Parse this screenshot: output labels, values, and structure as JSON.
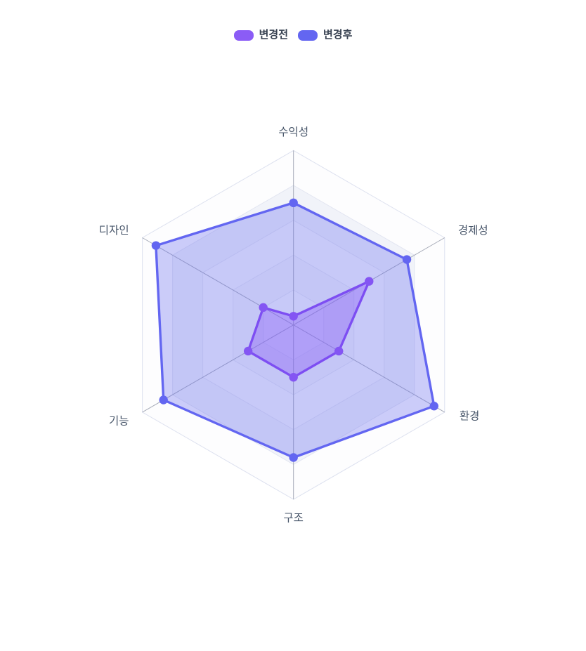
{
  "page": {
    "background": "#ffffff"
  },
  "legend": {
    "position": "top-center",
    "items": [
      {
        "label": "변경전",
        "color": "#8b5cf6"
      },
      {
        "label": "변경후",
        "color": "#6366f1"
      }
    ]
  },
  "chart_data": {
    "type": "radar",
    "title": "",
    "categories": [
      "수익성",
      "경제성",
      "환경",
      "구조",
      "기능",
      "디자인"
    ],
    "series": [
      {
        "name": "변경전",
        "values": [
          0.25,
          2.5,
          1.5,
          1.5,
          1.5,
          1.0
        ],
        "line_color": "#7d4ef2",
        "point_color": "#8455f3",
        "fill_color": "rgba(139,92,246,0.38)",
        "legend_color": "#8b5cf6"
      },
      {
        "name": "변경후",
        "values": [
          3.5,
          3.75,
          4.65,
          3.8,
          4.3,
          4.55
        ],
        "line_color": "#6366f1",
        "point_color": "#6366f1",
        "fill_color": "rgba(99,102,241,0.32)",
        "legend_color": "#6366f1"
      }
    ],
    "scale": {
      "min": 0,
      "max": 5,
      "rings": 5,
      "tick_labels_visible": false
    },
    "grid": {
      "shape": "hexagon",
      "ring_line_color": "#e2e5f1",
      "outer_line_color": "#dde1ef",
      "axis_line_color": "#a6abb8",
      "band_colors": [
        "#f7f8fc",
        "#f2f4f9",
        "#f7f8fc",
        "#f1f3f9",
        "#fdfdfe"
      ]
    },
    "axis_label_color": "#475569",
    "legend_position": "top"
  }
}
